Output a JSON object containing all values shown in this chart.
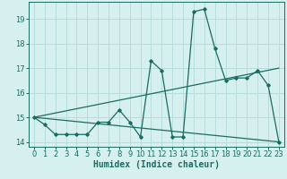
{
  "title": "",
  "xlabel": "Humidex (Indice chaleur)",
  "ylabel": "",
  "xlim": [
    -0.5,
    23.5
  ],
  "ylim": [
    13.8,
    19.7
  ],
  "yticks": [
    14,
    15,
    16,
    17,
    18,
    19
  ],
  "xticks": [
    0,
    1,
    2,
    3,
    4,
    5,
    6,
    7,
    8,
    9,
    10,
    11,
    12,
    13,
    14,
    15,
    16,
    17,
    18,
    19,
    20,
    21,
    22,
    23
  ],
  "background_color": "#d6f0f0",
  "grid_color": "#b8dcdc",
  "line_color": "#1a6b60",
  "line1_x": [
    0,
    1,
    2,
    3,
    4,
    5,
    6,
    7,
    8,
    9,
    10,
    11,
    12,
    13,
    14,
    15,
    16,
    17,
    18,
    19,
    20,
    21,
    22,
    23
  ],
  "line1_y": [
    15.0,
    14.7,
    14.3,
    14.3,
    14.3,
    14.3,
    14.8,
    14.8,
    15.3,
    14.8,
    14.2,
    17.3,
    16.9,
    14.2,
    14.2,
    19.3,
    19.4,
    17.8,
    16.5,
    16.6,
    16.6,
    16.9,
    16.3,
    14.0
  ],
  "line2_x": [
    0,
    23
  ],
  "line2_y": [
    15.0,
    14.0
  ],
  "line3_x": [
    0,
    23
  ],
  "line3_y": [
    15.0,
    17.0
  ],
  "xlabel_fontsize": 7.0,
  "tick_fontsize": 6.0
}
